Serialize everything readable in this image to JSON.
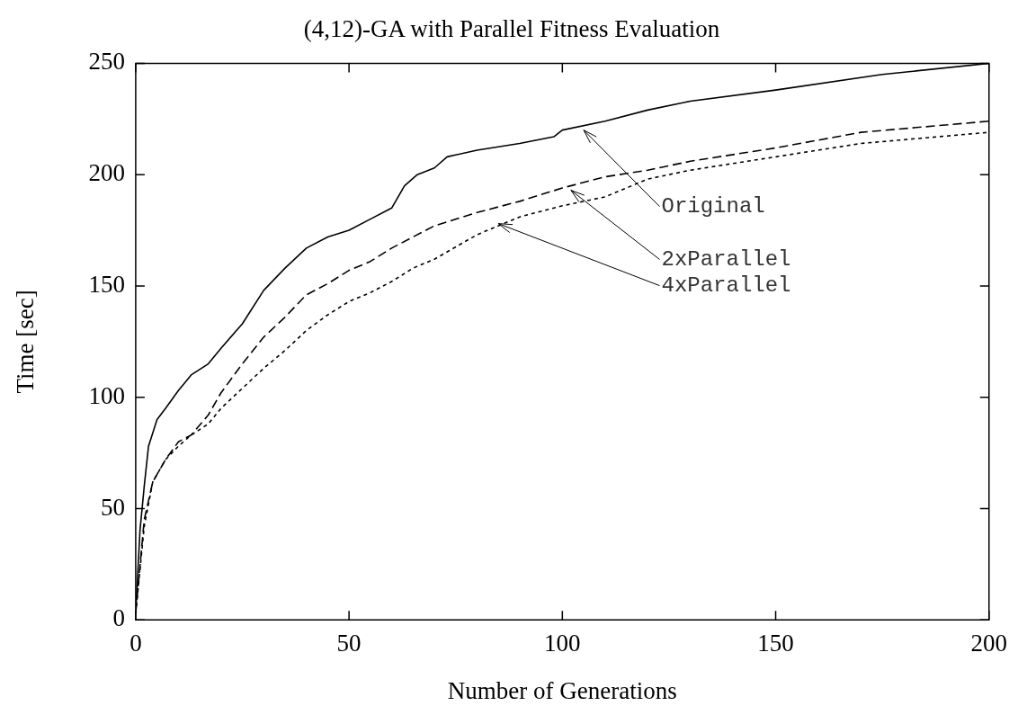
{
  "chart_data": {
    "type": "line",
    "title": "(4,12)-GA with Parallel Fitness Evaluation",
    "xlabel": "Number of Generations",
    "ylabel": "Time [sec]",
    "xlim": [
      0,
      200
    ],
    "xticks": [
      0,
      50,
      100,
      150,
      200
    ],
    "ylim": [
      0,
      250
    ],
    "yticks": [
      0,
      50,
      100,
      150,
      200,
      250
    ],
    "grid": false,
    "legend": false,
    "marker": "none",
    "annotations": [
      {
        "text": "Original",
        "x": 105,
        "y": 220
      },
      {
        "text": "2xParallel",
        "x": 102,
        "y": 193
      },
      {
        "text": "4xParallel",
        "x": 85,
        "y": 178
      }
    ],
    "series": [
      {
        "color": "#000000",
        "line_style": "solid",
        "x": [
          0,
          1,
          2,
          3,
          5,
          7,
          10,
          13,
          17,
          20,
          25,
          30,
          35,
          40,
          45,
          50,
          55,
          60,
          63,
          66,
          70,
          73,
          80,
          90,
          98,
          100,
          110,
          120,
          130,
          150,
          175,
          200
        ],
        "values": [
          3,
          40,
          60,
          78,
          90,
          95,
          103,
          110,
          115,
          122,
          133,
          148,
          158,
          167,
          172,
          175,
          180,
          185,
          195,
          200,
          203,
          208,
          211,
          214,
          217,
          220,
          224,
          229,
          233,
          238,
          245,
          250
        ]
      },
      {
        "color": "#000000",
        "line_style": "dashed",
        "x": [
          0,
          2,
          4,
          7,
          10,
          13,
          17,
          20,
          25,
          30,
          35,
          40,
          45,
          50,
          55,
          60,
          65,
          70,
          80,
          90,
          100,
          110,
          120,
          130,
          150,
          170,
          200
        ],
        "values": [
          3,
          45,
          62,
          72,
          80,
          83,
          92,
          102,
          115,
          127,
          136,
          146,
          151,
          157,
          161,
          167,
          172,
          177,
          183,
          188,
          194,
          199,
          202,
          206,
          212,
          219,
          224
        ]
      },
      {
        "color": "#000000",
        "line_style": "dotted",
        "x": [
          0,
          2,
          4,
          7,
          10,
          13,
          17,
          20,
          25,
          30,
          35,
          40,
          45,
          50,
          55,
          60,
          65,
          70,
          80,
          90,
          100,
          110,
          120,
          130,
          150,
          170,
          200
        ],
        "values": [
          3,
          42,
          62,
          72,
          78,
          83,
          88,
          95,
          104,
          113,
          121,
          130,
          137,
          143,
          147,
          152,
          158,
          162,
          173,
          181,
          186,
          190,
          198,
          202,
          208,
          214,
          219
        ]
      }
    ]
  }
}
